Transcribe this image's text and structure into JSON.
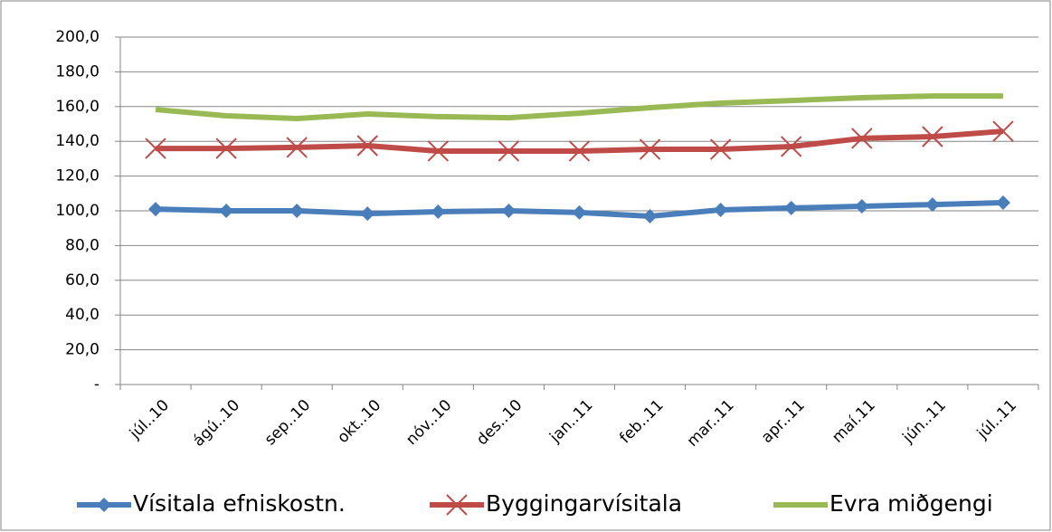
{
  "chart_data": {
    "type": "line",
    "categories": [
      "júl..10",
      "ágú..10",
      "sep..10",
      "okt..10",
      "nóv..10",
      "des..10",
      "jan..11",
      "feb..11",
      "mar..11",
      "apr..11",
      "maí.11",
      "jún..11",
      "júl..11"
    ],
    "series": [
      {
        "name": "Vísitala efniskostn.",
        "color": "#4a7ebb",
        "marker": "diamond",
        "values": [
          101.0,
          100.0,
          100.0,
          98.4,
          99.5,
          100.0,
          99.0,
          96.9,
          100.5,
          101.6,
          102.6,
          103.6,
          104.7
        ]
      },
      {
        "name": "Byggingarvísitala",
        "color": "#be4b48",
        "marker": "x",
        "values": [
          135.9,
          135.9,
          136.5,
          137.5,
          134.4,
          134.4,
          134.4,
          135.4,
          135.4,
          137.0,
          141.7,
          142.7,
          145.8
        ]
      },
      {
        "name": "Evra miðgengi",
        "color": "#98b954",
        "marker": "none",
        "values": [
          158.3,
          154.7,
          153.1,
          155.7,
          154.2,
          153.6,
          156.2,
          159.4,
          162.0,
          163.5,
          165.1,
          166.1,
          166.1
        ]
      }
    ],
    "ylim": [
      0,
      200
    ],
    "yticks": [
      {
        "value": 0,
        "label": "-"
      },
      {
        "value": 20,
        "label": "20,0"
      },
      {
        "value": 40,
        "label": "40,0"
      },
      {
        "value": 60,
        "label": "60,0"
      },
      {
        "value": 80,
        "label": "80,0"
      },
      {
        "value": 100,
        "label": "100,0"
      },
      {
        "value": 120,
        "label": "120,0"
      },
      {
        "value": 140,
        "label": "140,0"
      },
      {
        "value": 160,
        "label": "160,0"
      },
      {
        "value": 180,
        "label": "180,0"
      },
      {
        "value": 200,
        "label": "200,0"
      }
    ],
    "grid": true,
    "legend": "bottom"
  }
}
